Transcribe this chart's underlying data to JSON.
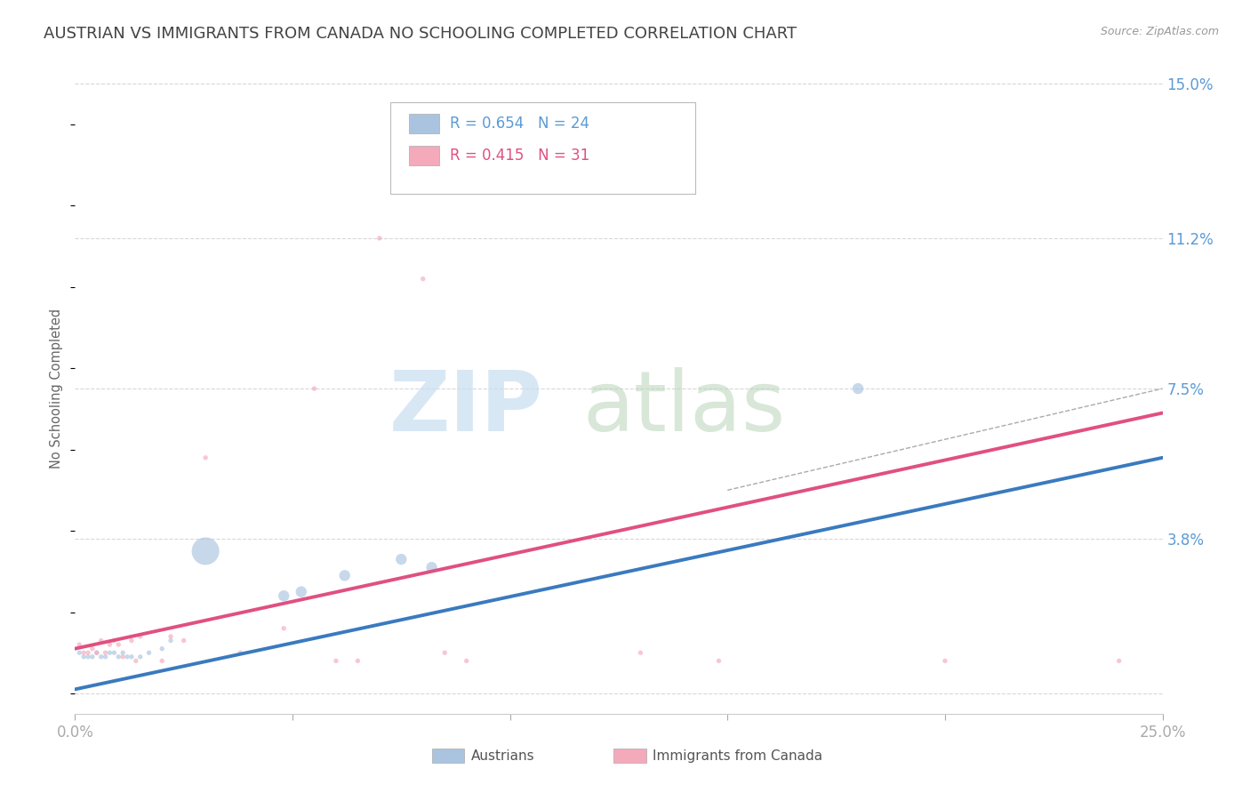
{
  "title": "AUSTRIAN VS IMMIGRANTS FROM CANADA NO SCHOOLING COMPLETED CORRELATION CHART",
  "source": "Source: ZipAtlas.com",
  "ylabel": "No Schooling Completed",
  "xlim": [
    0.0,
    0.25
  ],
  "ylim": [
    -0.005,
    0.155
  ],
  "ytick_positions": [
    0.0,
    0.038,
    0.075,
    0.112,
    0.15
  ],
  "ytick_labels": [
    "",
    "3.8%",
    "7.5%",
    "11.2%",
    "15.0%"
  ],
  "xtick_positions": [
    0.0,
    0.05,
    0.1,
    0.15,
    0.2,
    0.25
  ],
  "xtick_labels": [
    "0.0%",
    "",
    "",
    "",
    "",
    "25.0%"
  ],
  "austrians": {
    "color": "#aac4e0",
    "line_color": "#3a7abf",
    "points": [
      [
        0.001,
        0.01
      ],
      [
        0.002,
        0.009
      ],
      [
        0.003,
        0.009
      ],
      [
        0.004,
        0.009
      ],
      [
        0.005,
        0.01
      ],
      [
        0.006,
        0.009
      ],
      [
        0.007,
        0.009
      ],
      [
        0.008,
        0.01
      ],
      [
        0.009,
        0.01
      ],
      [
        0.01,
        0.009
      ],
      [
        0.011,
        0.01
      ],
      [
        0.012,
        0.009
      ],
      [
        0.013,
        0.009
      ],
      [
        0.015,
        0.009
      ],
      [
        0.017,
        0.01
      ],
      [
        0.02,
        0.011
      ],
      [
        0.022,
        0.013
      ],
      [
        0.03,
        0.035
      ],
      [
        0.048,
        0.024
      ],
      [
        0.052,
        0.025
      ],
      [
        0.062,
        0.029
      ],
      [
        0.075,
        0.033
      ],
      [
        0.082,
        0.031
      ],
      [
        0.18,
        0.075
      ]
    ],
    "sizes": [
      15,
      15,
      15,
      15,
      15,
      15,
      15,
      15,
      15,
      15,
      15,
      15,
      15,
      15,
      15,
      15,
      15,
      500,
      80,
      80,
      80,
      80,
      80,
      80
    ],
    "line_x": [
      0.0,
      0.25
    ],
    "line_y": [
      0.001,
      0.058
    ]
  },
  "canada": {
    "color": "#f4aabb",
    "line_color": "#e05080",
    "points": [
      [
        0.001,
        0.012
      ],
      [
        0.002,
        0.01
      ],
      [
        0.003,
        0.01
      ],
      [
        0.004,
        0.011
      ],
      [
        0.005,
        0.01
      ],
      [
        0.006,
        0.013
      ],
      [
        0.007,
        0.01
      ],
      [
        0.008,
        0.012
      ],
      [
        0.009,
        0.013
      ],
      [
        0.01,
        0.012
      ],
      [
        0.011,
        0.009
      ],
      [
        0.013,
        0.013
      ],
      [
        0.014,
        0.008
      ],
      [
        0.015,
        0.014
      ],
      [
        0.02,
        0.008
      ],
      [
        0.022,
        0.014
      ],
      [
        0.025,
        0.013
      ],
      [
        0.03,
        0.058
      ],
      [
        0.038,
        0.01
      ],
      [
        0.048,
        0.016
      ],
      [
        0.055,
        0.075
      ],
      [
        0.06,
        0.008
      ],
      [
        0.065,
        0.008
      ],
      [
        0.07,
        0.112
      ],
      [
        0.08,
        0.102
      ],
      [
        0.085,
        0.01
      ],
      [
        0.09,
        0.008
      ],
      [
        0.13,
        0.01
      ],
      [
        0.148,
        0.008
      ],
      [
        0.2,
        0.008
      ],
      [
        0.24,
        0.008
      ]
    ],
    "sizes": [
      15,
      15,
      15,
      15,
      15,
      15,
      15,
      15,
      15,
      15,
      15,
      15,
      15,
      15,
      15,
      15,
      15,
      15,
      15,
      15,
      15,
      15,
      15,
      15,
      15,
      15,
      15,
      15,
      15,
      15,
      15
    ],
    "line_x": [
      0.0,
      0.25
    ],
    "line_y": [
      0.011,
      0.069
    ]
  },
  "dashed_line": {
    "x": [
      0.15,
      0.25
    ],
    "y": [
      0.05,
      0.075
    ],
    "color": "#aaaaaa"
  },
  "background_color": "#ffffff",
  "grid_color": "#d8d8d8",
  "title_color": "#444444",
  "axis_label_color": "#5b9bd5",
  "title_fontsize": 13,
  "label_fontsize": 10.5
}
